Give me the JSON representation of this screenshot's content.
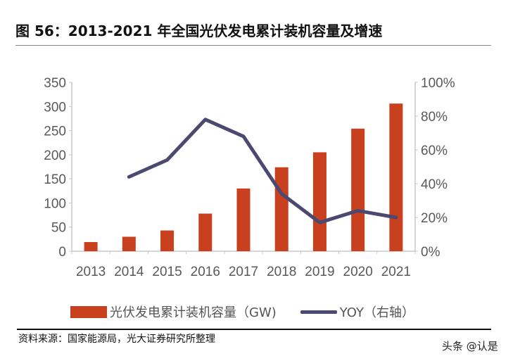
{
  "title": "图 56：2013-2021 年全国光伏发电累计装机容量及增速",
  "source": "资料来源：国家能源局，光大证券研究所整理",
  "watermark": "头条 @认是",
  "chart_data": {
    "type": "bar+line",
    "categories": [
      "2013",
      "2014",
      "2015",
      "2016",
      "2017",
      "2018",
      "2019",
      "2020",
      "2021"
    ],
    "series": [
      {
        "name": "光伏发电累计装机容量（GW)",
        "type": "bar",
        "axis": "left",
        "color": "#c9401f",
        "values": [
          19,
          30,
          43,
          78,
          130,
          174,
          205,
          254,
          306
        ]
      },
      {
        "name": "YOY（右轴）",
        "type": "line",
        "axis": "right",
        "color": "#4b4970",
        "values": [
          null,
          44,
          54,
          78,
          68,
          34,
          17,
          24,
          20
        ]
      }
    ],
    "left_axis": {
      "min": 0,
      "max": 350,
      "ticks": [
        "0",
        "50",
        "100",
        "150",
        "200",
        "250",
        "300",
        "350"
      ]
    },
    "right_axis": {
      "min": 0,
      "max": 100,
      "unit": "%",
      "ticks": [
        "0%",
        "20%",
        "40%",
        "60%",
        "80%",
        "100%"
      ]
    },
    "grid": false,
    "legend_position": "bottom"
  }
}
